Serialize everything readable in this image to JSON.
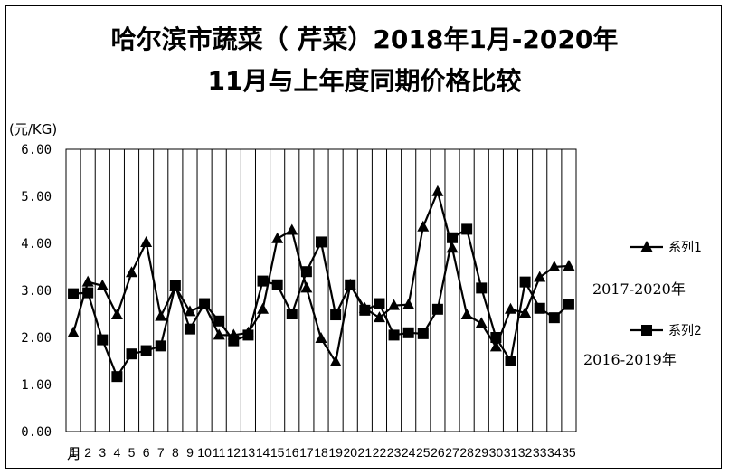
{
  "chart_data": {
    "type": "line",
    "title_line1": "哈尔滨市蔬菜（ 芹菜）2018年1月-2020年",
    "title_line2": "11月与上年度同期价格比较",
    "y_unit": "(元/KG)",
    "ylim": [
      0,
      6
    ],
    "y_ticks": [
      "0.00",
      "1.00",
      "2.00",
      "3.00",
      "4.00",
      "5.00",
      "6.00"
    ],
    "x_tick_labels": [
      "1",
      "2",
      "3",
      "4",
      "5",
      "6",
      "7",
      "8",
      "9",
      "10",
      "11",
      "12",
      "13",
      "14",
      "15",
      "16",
      "17",
      "18",
      "19",
      "20",
      "21",
      "22",
      "23",
      "24",
      "25",
      "26",
      "27",
      "28",
      "29",
      "30",
      "31",
      "32",
      "33",
      "34",
      "35"
    ],
    "x_first_label_prefix": "月",
    "grid": "vertical",
    "legend_position": "right",
    "series": [
      {
        "name": "系列1",
        "marker": "triangle",
        "annotation": "2017-2020年",
        "values": [
          2.1,
          3.18,
          3.1,
          2.48,
          3.38,
          4.02,
          2.45,
          3.08,
          2.55,
          2.7,
          2.05,
          2.05,
          2.1,
          2.6,
          4.1,
          4.28,
          3.05,
          1.98,
          1.48,
          3.12,
          2.62,
          2.42,
          2.68,
          2.7,
          4.35,
          5.1,
          3.9,
          2.48,
          2.3,
          1.8,
          2.6,
          2.52,
          3.28,
          3.5,
          3.52
        ]
      },
      {
        "name": "系列2",
        "marker": "square",
        "annotation": "2016-2019年",
        "values": [
          2.93,
          2.95,
          1.95,
          1.17,
          1.65,
          1.72,
          1.82,
          3.1,
          2.18,
          2.72,
          2.35,
          1.93,
          2.05,
          3.2,
          3.12,
          2.5,
          3.4,
          4.03,
          2.48,
          3.12,
          2.58,
          2.72,
          2.05,
          2.1,
          2.08,
          2.6,
          4.12,
          4.3,
          3.05,
          2.0,
          1.5,
          3.18,
          2.62,
          2.42,
          2.7
        ]
      }
    ]
  }
}
